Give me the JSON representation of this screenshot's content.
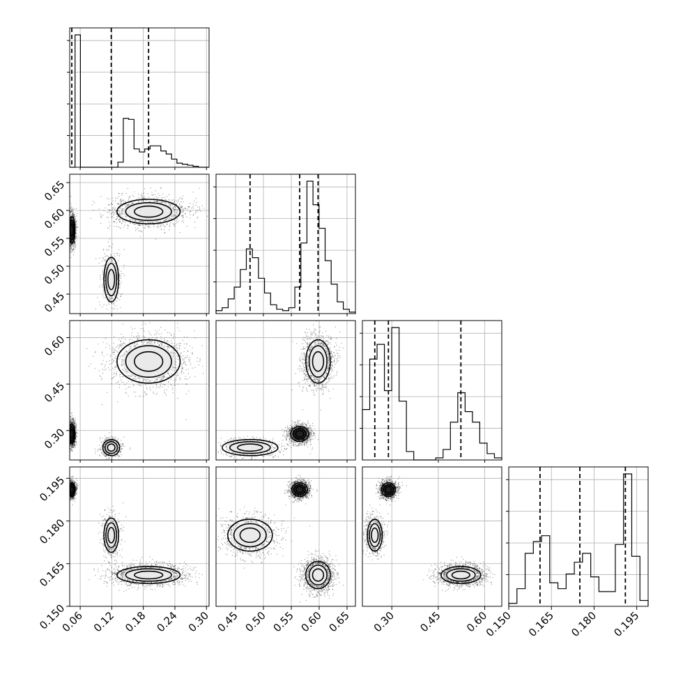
{
  "chart_data": {
    "type": "corner",
    "grid": true,
    "colors": {
      "line": "#000000",
      "grid": "#b0b0b0",
      "points": "#000000",
      "fill": "#eeeeee"
    },
    "params": [
      {
        "range": [
          0.04,
          0.305
        ],
        "ticks": [
          0.06,
          0.12,
          0.18,
          0.24,
          0.3
        ],
        "tick_labels": [
          "0.06",
          "0.12",
          "0.18",
          "0.24",
          "0.30"
        ],
        "quantiles": [
          0.044,
          0.119,
          0.19
        ]
      },
      {
        "range": [
          0.415,
          0.665
        ],
        "ticks": [
          0.45,
          0.5,
          0.55,
          0.6,
          0.65
        ],
        "tick_labels": [
          "0.45",
          "0.50",
          "0.55",
          "0.60",
          "0.65"
        ],
        "quantiles": [
          0.476,
          0.565,
          0.598
        ]
      },
      {
        "range": [
          0.205,
          0.655
        ],
        "ticks": [
          0.3,
          0.45,
          0.6
        ],
        "tick_labels": [
          "0.30",
          "0.45",
          "0.60"
        ],
        "quantiles": [
          0.245,
          0.289,
          0.523
        ]
      },
      {
        "range": [
          0.15,
          0.199
        ],
        "ticks": [
          0.15,
          0.165,
          0.18,
          0.195
        ],
        "tick_labels": [
          "0.150",
          "0.165",
          "0.180",
          "0.195"
        ],
        "quantiles": [
          0.161,
          0.175,
          0.191
        ]
      }
    ],
    "histograms": [
      {
        "param": 0,
        "bins": [
          0.04,
          0.305
        ],
        "counts": [
          0,
          130,
          0,
          0,
          0,
          0,
          0,
          0,
          0,
          5,
          48,
          47,
          18,
          15,
          18,
          21,
          21,
          16,
          13,
          8,
          4,
          3,
          2,
          1,
          0,
          0
        ]
      },
      {
        "param": 1,
        "bins": [
          0.415,
          0.665
        ],
        "counts": [
          2,
          4,
          10,
          18,
          30,
          44,
          38,
          24,
          14,
          6,
          3,
          2,
          4,
          18,
          48,
          90,
          74,
          58,
          36,
          20,
          8,
          3,
          1
        ]
      },
      {
        "param": 2,
        "bins": [
          0.205,
          0.655
        ],
        "counts": [
          24,
          48,
          55,
          33,
          63,
          28,
          4,
          0,
          0,
          0,
          1,
          5,
          18,
          32,
          23,
          18,
          8,
          3,
          1
        ]
      },
      {
        "param": 3,
        "bins": [
          0.15,
          0.199
        ],
        "counts": [
          2,
          12,
          36,
          44,
          48,
          16,
          12,
          22,
          30,
          36,
          20,
          10,
          10,
          42,
          90,
          34,
          4
        ]
      }
    ],
    "panels_2d": [
      {
        "x_param": 0,
        "y_param": 1,
        "clusters": [
          {
            "mean": [
              0.044,
              0.565
            ],
            "sd": [
              0.003,
              0.012
            ],
            "n": 1400,
            "dense": true
          },
          {
            "mean": [
              0.119,
              0.476
            ],
            "sd": [
              0.007,
              0.02
            ],
            "n": 500
          },
          {
            "mean": [
              0.19,
              0.598
            ],
            "sd": [
              0.03,
              0.011
            ],
            "n": 1400
          }
        ]
      },
      {
        "x_param": 0,
        "y_param": 2,
        "clusters": [
          {
            "mean": [
              0.044,
              0.289
            ],
            "sd": [
              0.003,
              0.016
            ],
            "n": 1400,
            "dense": true
          },
          {
            "mean": [
              0.119,
              0.245
            ],
            "sd": [
              0.008,
              0.013
            ],
            "n": 500
          },
          {
            "mean": [
              0.19,
              0.523
            ],
            "sd": [
              0.03,
              0.035
            ],
            "n": 1400
          }
        ]
      },
      {
        "x_param": 0,
        "y_param": 3,
        "clusters": [
          {
            "mean": [
              0.044,
              0.191
            ],
            "sd": [
              0.003,
              0.0012
            ],
            "n": 1400,
            "dense": true
          },
          {
            "mean": [
              0.119,
              0.175
            ],
            "sd": [
              0.007,
              0.003
            ],
            "n": 500
          },
          {
            "mean": [
              0.19,
              0.161
            ],
            "sd": [
              0.03,
              0.0015
            ],
            "n": 1400
          }
        ]
      },
      {
        "x_param": 1,
        "y_param": 2,
        "clusters": [
          {
            "mean": [
              0.476,
              0.245
            ],
            "sd": [
              0.025,
              0.013
            ],
            "n": 500
          },
          {
            "mean": [
              0.565,
              0.289
            ],
            "sd": [
              0.008,
              0.012
            ],
            "n": 1400,
            "dense": true
          },
          {
            "mean": [
              0.598,
              0.523
            ],
            "sd": [
              0.011,
              0.035
            ],
            "n": 1400
          }
        ]
      },
      {
        "x_param": 1,
        "y_param": 3,
        "clusters": [
          {
            "mean": [
              0.476,
              0.175
            ],
            "sd": [
              0.02,
              0.0028
            ],
            "n": 1000
          },
          {
            "mean": [
              0.565,
              0.191
            ],
            "sd": [
              0.007,
              0.0012
            ],
            "n": 1400,
            "dense": true
          },
          {
            "mean": [
              0.598,
              0.161
            ],
            "sd": [
              0.011,
              0.0024
            ],
            "n": 1400
          }
        ]
      },
      {
        "x_param": 2,
        "y_param": 3,
        "clusters": [
          {
            "mean": [
              0.245,
              0.175
            ],
            "sd": [
              0.012,
              0.0028
            ],
            "n": 700
          },
          {
            "mean": [
              0.289,
              0.191
            ],
            "sd": [
              0.011,
              0.0012
            ],
            "n": 1400,
            "dense": true
          },
          {
            "mean": [
              0.523,
              0.161
            ],
            "sd": [
              0.032,
              0.0015
            ],
            "n": 1400
          }
        ]
      }
    ]
  }
}
